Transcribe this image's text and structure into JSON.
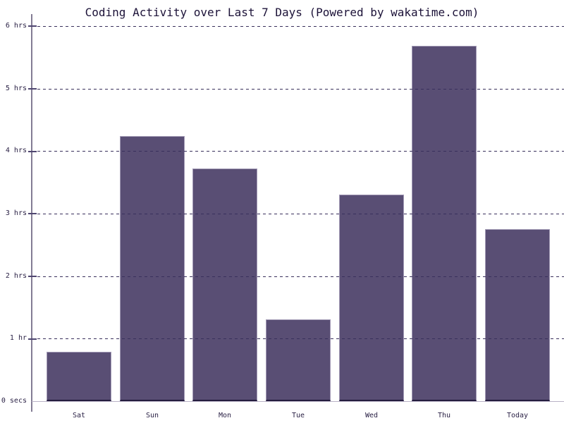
{
  "chart_data": {
    "type": "bar",
    "title": "Coding Activity over Last 7 Days (Powered by wakatime.com)",
    "categories": [
      "Sat",
      "Sun",
      "Mon",
      "Tue",
      "Wed",
      "Thu",
      "Today"
    ],
    "values": [
      0.79,
      4.24,
      3.72,
      1.31,
      3.31,
      5.68,
      2.75
    ],
    "values_unit": "hours",
    "y_tick_labels": [
      "0 secs",
      "1 hr",
      "2 hrs",
      "3 hrs",
      "4 hrs",
      "5 hrs",
      "6 hrs"
    ],
    "ylim": [
      0,
      6
    ],
    "xlabel": "",
    "ylabel": "",
    "legend": "none",
    "grid": "horizontal-dashed",
    "colors": {
      "bar_fill": "#594e74",
      "bar_border": "#a39bb6",
      "grid_line": "#39305c",
      "axis_line": "#837c94",
      "baseline": "#b9b2c6",
      "text": "#2a2145",
      "title_text": "#1c1238",
      "background": "#ffffff"
    }
  }
}
